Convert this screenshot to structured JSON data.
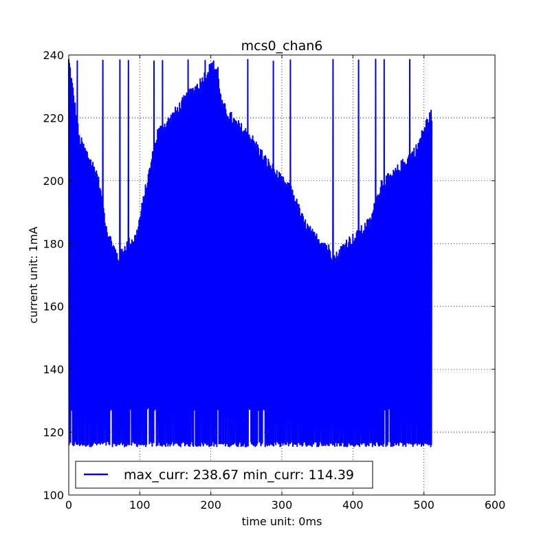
{
  "chart_data": {
    "type": "line",
    "title": "mcs0_chan6",
    "xlabel": "time unit: 0ms",
    "ylabel": "current unit: 1mA",
    "xlim": [
      0,
      600
    ],
    "ylim": [
      100,
      240
    ],
    "xticks": [
      0,
      100,
      200,
      300,
      400,
      500,
      600
    ],
    "yticks": [
      100,
      120,
      140,
      160,
      180,
      200,
      220,
      240
    ],
    "grid": true,
    "legend_position": "lower-left",
    "series": [
      {
        "name": "max_curr: 238.67 min_curr: 114.39",
        "color": "#0000ff",
        "x_range": [
          0,
          511
        ],
        "max_curr": 238.67,
        "min_curr": 114.39,
        "envelope_points": [
          [
            0,
            238.5
          ],
          [
            15,
            213
          ],
          [
            40,
            202
          ],
          [
            55,
            183
          ],
          [
            70,
            175
          ],
          [
            80,
            179
          ],
          [
            95,
            182
          ],
          [
            110,
            199
          ],
          [
            125,
            215
          ],
          [
            145,
            220
          ],
          [
            165,
            226
          ],
          [
            185,
            231
          ],
          [
            200,
            236
          ],
          [
            210,
            235
          ],
          [
            215,
            224
          ],
          [
            235,
            218
          ],
          [
            255,
            214
          ],
          [
            275,
            207
          ],
          [
            295,
            201
          ],
          [
            315,
            196
          ],
          [
            330,
            187
          ],
          [
            345,
            182
          ],
          [
            360,
            180
          ],
          [
            375,
            175
          ],
          [
            390,
            180
          ],
          [
            405,
            182
          ],
          [
            425,
            187
          ],
          [
            440,
            199
          ],
          [
            455,
            201
          ],
          [
            470,
            205
          ],
          [
            490,
            210
          ],
          [
            505,
            219
          ],
          [
            511,
            221
          ]
        ]
      }
    ]
  }
}
